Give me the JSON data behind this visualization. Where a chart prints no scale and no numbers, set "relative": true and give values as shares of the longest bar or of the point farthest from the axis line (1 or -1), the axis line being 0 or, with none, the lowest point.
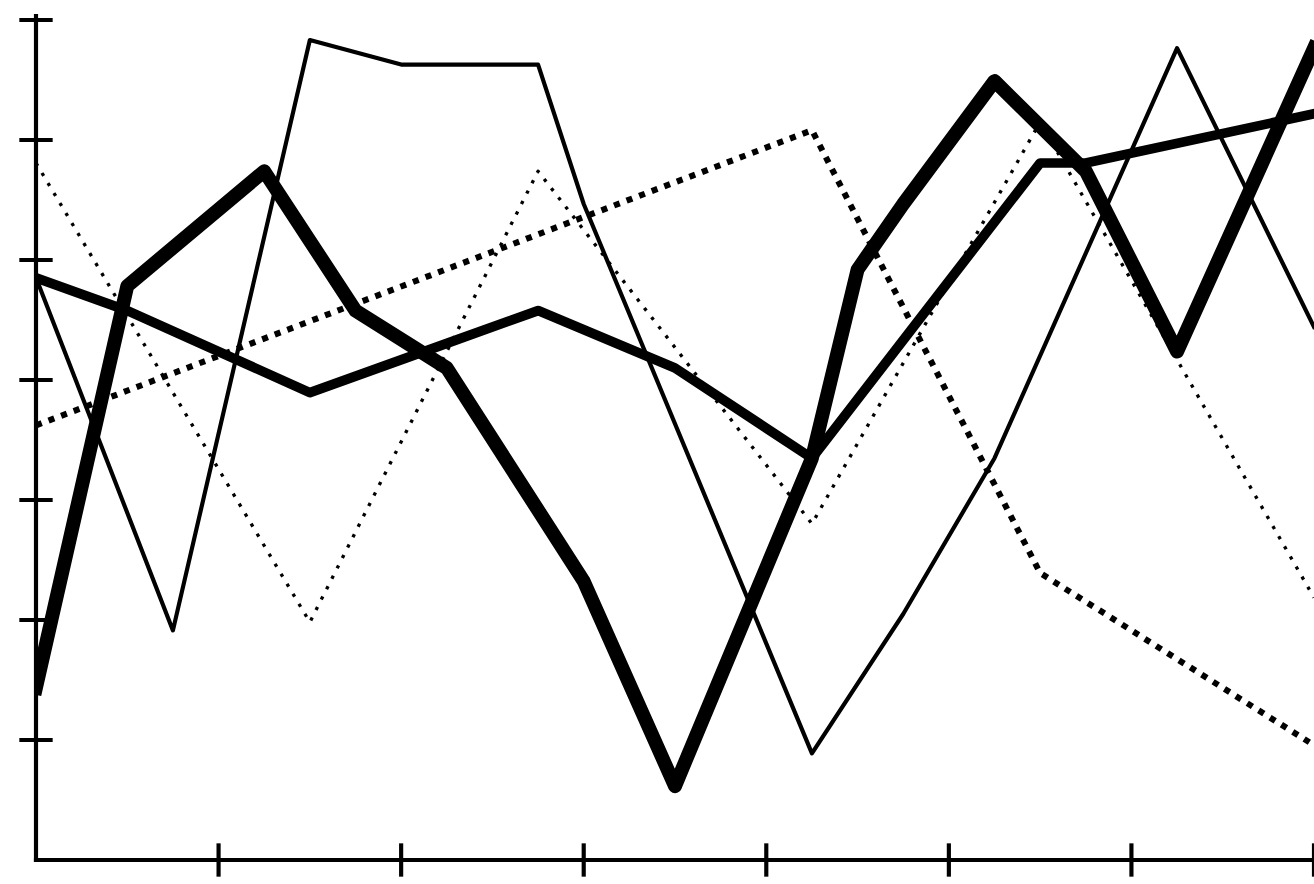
{
  "chart_data": {
    "type": "line",
    "relative": true,
    "grid": false,
    "legend": false,
    "marker": "none",
    "categories": [
      null,
      null,
      null,
      null,
      null,
      null,
      null,
      null,
      null,
      null,
      null,
      null,
      null,
      null,
      null,
      null,
      null,
      null,
      null,
      null,
      null,
      null,
      null,
      null,
      null,
      null,
      null,
      null,
      null
    ],
    "series": [
      {
        "color": "#000000",
        "line_style": "solid",
        "values": [
          0.21,
          null,
          0.7,
          null,
          null,
          0.84,
          null,
          0.67,
          null,
          0.6,
          null,
          null,
          0.34,
          null,
          0.09,
          null,
          null,
          0.49,
          0.72,
          0.8,
          null,
          0.95,
          null,
          0.84,
          null,
          0.62,
          null,
          null,
          0.99
        ]
      },
      {
        "color": "#000000",
        "line_style": "solid",
        "values": [
          0.71,
          null,
          0.67,
          null,
          null,
          null,
          0.57,
          null,
          null,
          0.63,
          null,
          0.67,
          null,
          null,
          0.6,
          null,
          null,
          0.49,
          null,
          null,
          null,
          null,
          0.85,
          0.85,
          null,
          null,
          null,
          null,
          0.91
        ]
      },
      {
        "color": "#000000",
        "line_style": "solid",
        "values": [
          0.71,
          null,
          null,
          0.28,
          null,
          null,
          1.0,
          null,
          0.97,
          null,
          null,
          0.97,
          0.8,
          null,
          null,
          null,
          null,
          0.13,
          null,
          0.3,
          null,
          0.49,
          null,
          null,
          null,
          0.99,
          null,
          null,
          0.65
        ]
      },
      {
        "color": "#000000",
        "line_style": "dotted",
        "values": [
          0.85,
          null,
          null,
          null,
          null,
          null,
          0.29,
          null,
          null,
          null,
          null,
          0.84,
          null,
          null,
          null,
          null,
          null,
          0.41,
          null,
          null,
          null,
          null,
          0.9,
          null,
          null,
          null,
          null,
          null,
          0.32
        ]
      },
      {
        "color": "#000000",
        "line_style": "dashed",
        "values": [
          0.53,
          null,
          null,
          null,
          null,
          null,
          null,
          null,
          null,
          null,
          null,
          null,
          null,
          null,
          null,
          null,
          null,
          0.89,
          null,
          null,
          null,
          null,
          0.35,
          null,
          null,
          null,
          null,
          null,
          0.14
        ]
      }
    ]
  }
}
